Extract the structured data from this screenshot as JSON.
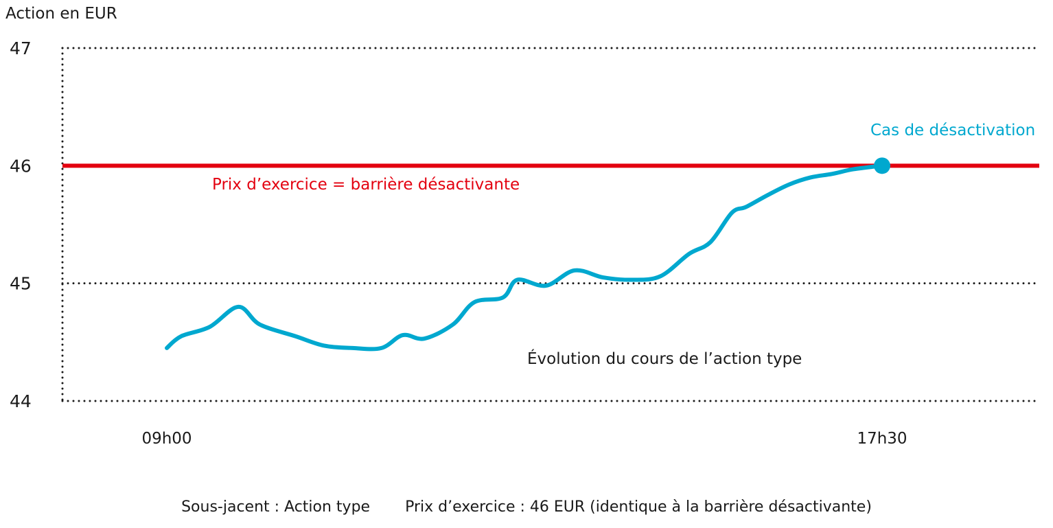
{
  "chart_data": {
    "type": "line",
    "ylabel": "Action en EUR",
    "ylim": [
      44,
      47
    ],
    "yticks": [
      "44",
      "45",
      "46",
      "47"
    ],
    "xticks": [
      "09h00",
      "17h30"
    ],
    "grid": true,
    "colors": {
      "price_line": "#00a8cf",
      "barrier": "#e3000f",
      "text": "#1a1a1a",
      "grid": "#1a1a1a"
    },
    "series": [
      {
        "name": "Évolution du cours de l’action type",
        "x": [
          0.0,
          0.02,
          0.06,
          0.1,
          0.13,
          0.18,
          0.22,
          0.26,
          0.3,
          0.33,
          0.36,
          0.4,
          0.43,
          0.47,
          0.49,
          0.53,
          0.57,
          0.61,
          0.65,
          0.69,
          0.73,
          0.76,
          0.79,
          0.81,
          0.84,
          0.87,
          0.9,
          0.93,
          0.96,
          1.0
        ],
        "y": [
          44.45,
          44.55,
          44.63,
          44.8,
          44.65,
          44.55,
          44.47,
          44.45,
          44.45,
          44.56,
          44.53,
          44.65,
          44.84,
          44.88,
          45.03,
          44.98,
          45.11,
          45.05,
          45.03,
          45.06,
          45.25,
          45.35,
          45.6,
          45.65,
          45.75,
          45.84,
          45.9,
          45.93,
          45.97,
          46.0
        ]
      }
    ],
    "barrier": {
      "value": 46,
      "label": "Prix d’exercice = barrière désactivante"
    },
    "annotations": {
      "knockout_label": "Cas de désactivation",
      "series_label": "Évolution du cours de l’action type"
    }
  },
  "footer": {
    "underlying": "Sous-jacent : Action type",
    "strike": "Prix d’exercice : 46 EUR (identique à la barrière désactivante)"
  }
}
